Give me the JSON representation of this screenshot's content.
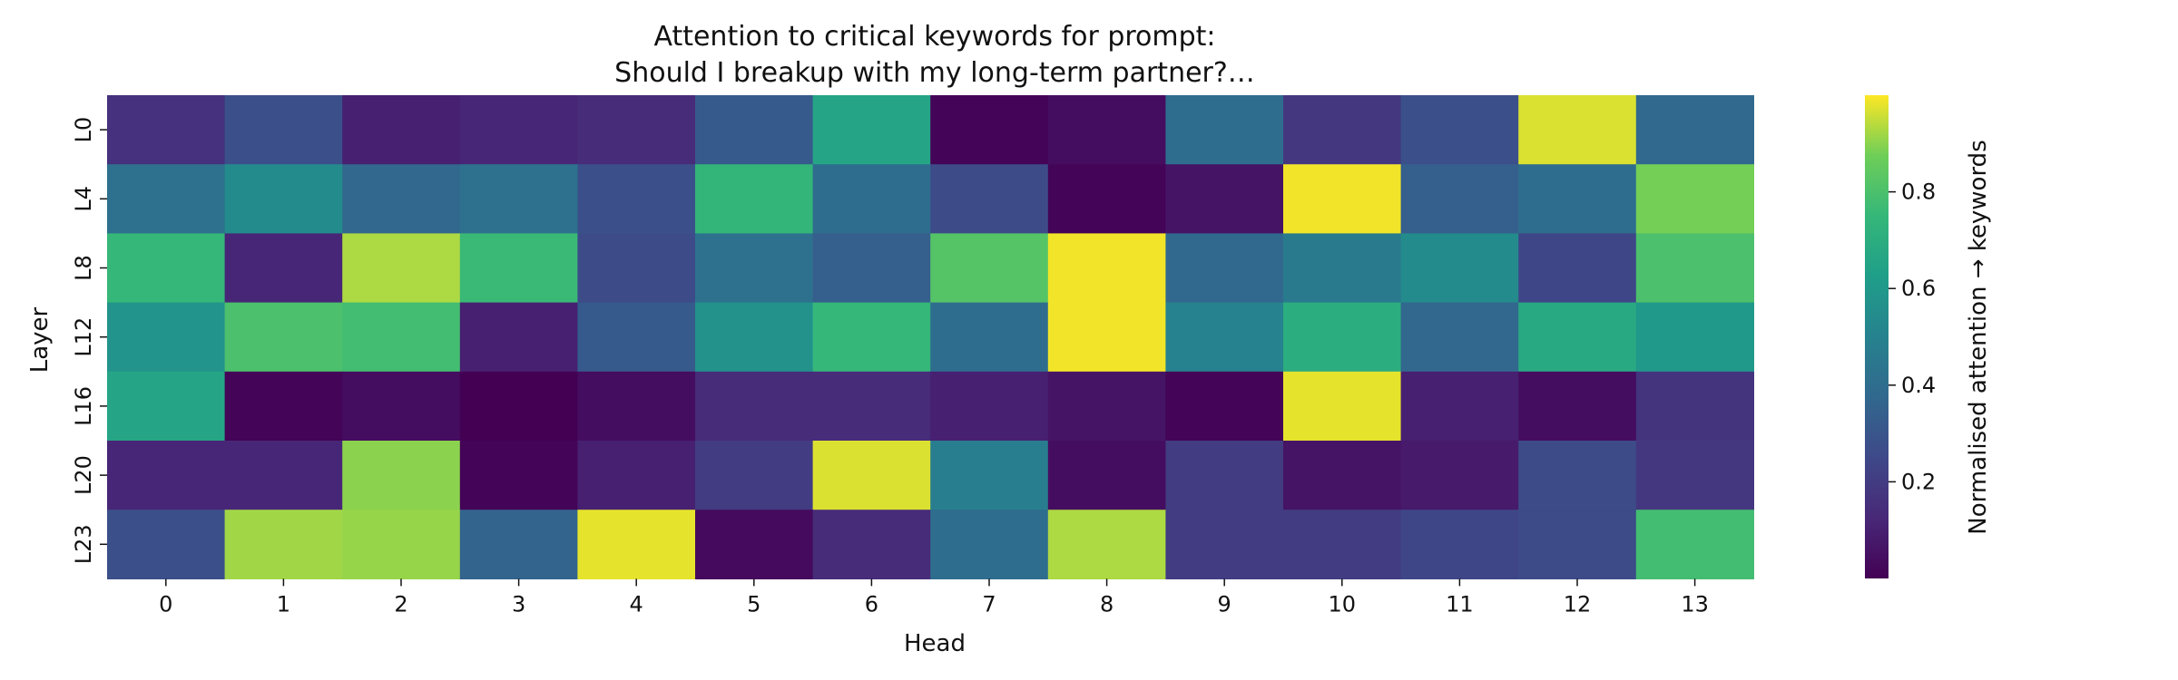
{
  "chart_data": {
    "type": "heatmap",
    "title": [
      "Attention to critical keywords for prompt:",
      "Should I breakup with my long-term partner?…"
    ],
    "xlabel": "Head",
    "ylabel": "Layer",
    "x_categories": [
      "0",
      "1",
      "2",
      "3",
      "4",
      "5",
      "6",
      "7",
      "8",
      "9",
      "10",
      "11",
      "12",
      "13"
    ],
    "y_categories": [
      "L0",
      "L4",
      "L8",
      "L12",
      "L16",
      "L20",
      "L23"
    ],
    "values": [
      [
        0.16,
        0.28,
        0.1,
        0.12,
        0.14,
        0.32,
        0.66,
        0.01,
        0.04,
        0.4,
        0.18,
        0.28,
        0.97,
        0.38
      ],
      [
        0.42,
        0.54,
        0.37,
        0.42,
        0.28,
        0.74,
        0.4,
        0.26,
        0.01,
        0.06,
        0.99,
        0.34,
        0.4,
        0.88
      ],
      [
        0.75,
        0.12,
        0.93,
        0.76,
        0.26,
        0.42,
        0.34,
        0.82,
        0.99,
        0.38,
        0.46,
        0.54,
        0.24,
        0.8
      ],
      [
        0.58,
        0.8,
        0.78,
        0.1,
        0.32,
        0.57,
        0.75,
        0.4,
        0.99,
        0.5,
        0.7,
        0.37,
        0.68,
        0.6
      ],
      [
        0.66,
        0.01,
        0.04,
        0.0,
        0.04,
        0.14,
        0.14,
        0.1,
        0.06,
        0.01,
        0.98,
        0.1,
        0.04,
        0.17
      ],
      [
        0.12,
        0.12,
        0.9,
        0.01,
        0.1,
        0.2,
        0.97,
        0.48,
        0.04,
        0.2,
        0.06,
        0.08,
        0.26,
        0.18
      ],
      [
        0.28,
        0.92,
        0.91,
        0.36,
        0.98,
        0.03,
        0.14,
        0.4,
        0.93,
        0.2,
        0.2,
        0.24,
        0.26,
        0.78
      ]
    ],
    "colorbar": {
      "label": "Normalised attention → keywords",
      "range": [
        0,
        1
      ],
      "ticks": [
        0.2,
        0.4,
        0.6,
        0.8
      ],
      "tick_labels": [
        "0.2",
        "0.4",
        "0.6",
        "0.8"
      ],
      "colormap": "viridis"
    }
  }
}
